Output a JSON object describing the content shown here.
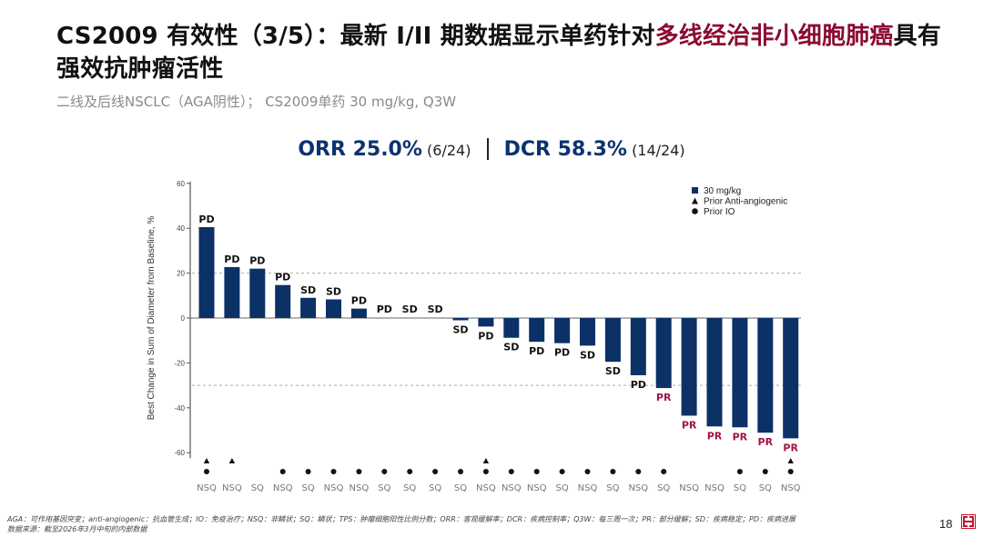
{
  "header": {
    "title_segments": [
      {
        "text": "CS2009 有效性（3/5）：最新 I/II 期数据显示单药针对",
        "highlight": false
      },
      {
        "text": "多线经治非小细胞肺癌",
        "highlight": true
      },
      {
        "text": "具有强效抗肿瘤活性",
        "highlight": false
      }
    ],
    "subtitle": "二线及后线NSCLC（AGA阴性）； CS2009单药 30 mg/kg, Q3W"
  },
  "kpi": {
    "orr_label": "ORR 25.0%",
    "orr_count": "(6/24)",
    "dcr_label": "DCR 58.3%",
    "dcr_count": "(14/24)"
  },
  "colors": {
    "bar": "#0b3167",
    "highlight": "#8b0a31",
    "pr_label": "#a0124a",
    "kpi": "#0b3370"
  },
  "chart_data": {
    "type": "bar",
    "title": "",
    "xlabel": "",
    "ylabel": "Best Change in Sum of Diameter from Baseline, %",
    "ylim": [
      -60,
      60
    ],
    "yticks": [
      60,
      40,
      20,
      0,
      -20,
      -40,
      -60
    ],
    "reference_lines": [
      20,
      -30
    ],
    "legend": {
      "placement": "top-right",
      "entries": [
        {
          "marker": "square",
          "label": "30 mg/kg"
        },
        {
          "marker": "triangle",
          "label": "Prior Anti-angiogenic"
        },
        {
          "marker": "circle",
          "label": "Prior IO"
        }
      ]
    },
    "patients": [
      {
        "value": 40.5,
        "response": "PD",
        "histology": "NSQ",
        "prior_anti_angiogenic": true,
        "prior_io": true
      },
      {
        "value": 22.7,
        "response": "PD",
        "histology": "NSQ",
        "prior_anti_angiogenic": true,
        "prior_io": false
      },
      {
        "value": 22.0,
        "response": "PD",
        "histology": "SQ",
        "prior_anti_angiogenic": false,
        "prior_io": false
      },
      {
        "value": 14.7,
        "response": "PD",
        "histology": "NSQ",
        "prior_anti_angiogenic": false,
        "prior_io": true
      },
      {
        "value": 9.0,
        "response": "SD",
        "histology": "SQ",
        "prior_anti_angiogenic": false,
        "prior_io": true
      },
      {
        "value": 8.3,
        "response": "SD",
        "histology": "NSQ",
        "prior_anti_angiogenic": false,
        "prior_io": true
      },
      {
        "value": 4.2,
        "response": "PD",
        "histology": "NSQ",
        "prior_anti_angiogenic": false,
        "prior_io": true
      },
      {
        "value": 0,
        "response": "PD",
        "histology": "SQ",
        "prior_anti_angiogenic": false,
        "prior_io": true
      },
      {
        "value": 0,
        "response": "SD",
        "histology": "SQ",
        "prior_anti_angiogenic": false,
        "prior_io": true
      },
      {
        "value": 0,
        "response": "SD",
        "histology": "SQ",
        "prior_anti_angiogenic": false,
        "prior_io": true
      },
      {
        "value": -1.0,
        "response": "SD",
        "histology": "SQ",
        "prior_anti_angiogenic": false,
        "prior_io": true
      },
      {
        "value": -3.8,
        "response": "PD",
        "histology": "NSQ",
        "prior_anti_angiogenic": true,
        "prior_io": true
      },
      {
        "value": -8.8,
        "response": "SD",
        "histology": "NSQ",
        "prior_anti_angiogenic": false,
        "prior_io": true
      },
      {
        "value": -10.6,
        "response": "PD",
        "histology": "NSQ",
        "prior_anti_angiogenic": false,
        "prior_io": true
      },
      {
        "value": -11.2,
        "response": "PD",
        "histology": "SQ",
        "prior_anti_angiogenic": false,
        "prior_io": true
      },
      {
        "value": -12.3,
        "response": "SD",
        "histology": "NSQ",
        "prior_anti_angiogenic": false,
        "prior_io": true
      },
      {
        "value": -19.5,
        "response": "SD",
        "histology": "SQ",
        "prior_anti_angiogenic": false,
        "prior_io": true
      },
      {
        "value": -25.5,
        "response": "PD",
        "histology": "NSQ",
        "prior_anti_angiogenic": false,
        "prior_io": true
      },
      {
        "value": -31.2,
        "response": "PR",
        "histology": "SQ",
        "prior_anti_angiogenic": false,
        "prior_io": true
      },
      {
        "value": -43.5,
        "response": "PR",
        "histology": "NSQ",
        "prior_anti_angiogenic": false,
        "prior_io": false
      },
      {
        "value": -48.3,
        "response": "PR",
        "histology": "NSQ",
        "prior_anti_angiogenic": false,
        "prior_io": false
      },
      {
        "value": -48.7,
        "response": "PR",
        "histology": "SQ",
        "prior_anti_angiogenic": false,
        "prior_io": true
      },
      {
        "value": -51.1,
        "response": "PR",
        "histology": "SQ",
        "prior_anti_angiogenic": false,
        "prior_io": true
      },
      {
        "value": -53.6,
        "response": "PR",
        "histology": "NSQ",
        "prior_anti_angiogenic": true,
        "prior_io": true
      }
    ]
  },
  "footer": {
    "line1": "AGA：可作用基因突变；anti-angiogenic：抗血管生成；IO：免疫治疗；NSQ：非鳞状；SQ：鳞状；TPS：肿瘤细胞阳性比例分数；ORR：客观缓解率；DCR：疾病控制率；Q3W：每三周一次；PR：部分缓解；SD：疾病稳定；PD：疾病进展",
    "line2": "数据来源：截至2026年3月中旬的内部数据",
    "page_number": "18"
  }
}
